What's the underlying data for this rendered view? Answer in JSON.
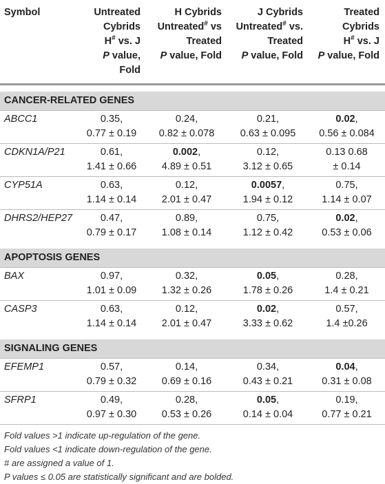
{
  "table": {
    "header": [
      [
        "Symbol"
      ],
      [
        "Untreated",
        "Cybrids",
        [
          {
            "text": "H"
          },
          {
            "text": "#",
            "style": "sup"
          },
          {
            "text": " vs. J"
          }
        ],
        [
          {
            "text": "P",
            "style": "italic"
          },
          {
            "text": " value, Fold"
          }
        ]
      ],
      [
        "H Cybrids",
        [
          {
            "text": "Untreated"
          },
          {
            "text": "#",
            "style": "sup"
          },
          {
            "text": " vs"
          }
        ],
        "Treated",
        [
          {
            "text": "P",
            "style": "italic"
          },
          {
            "text": " value, Fold"
          }
        ]
      ],
      [
        "J Cybrids",
        [
          {
            "text": "Untreated"
          },
          {
            "text": "#",
            "style": "sup"
          },
          {
            "text": " vs."
          }
        ],
        "Treated",
        [
          {
            "text": "P",
            "style": "italic"
          },
          {
            "text": " value, Fold"
          }
        ]
      ],
      [
        "Treated",
        "Cybrids",
        [
          {
            "text": "H"
          },
          {
            "text": "#",
            "style": "sup"
          },
          {
            "text": " vs. J"
          }
        ],
        [
          {
            "text": "P",
            "style": "italic"
          },
          {
            "text": " value, Fold"
          }
        ]
      ]
    ],
    "sections": [
      {
        "title": "CANCER-RELATED GENES",
        "rows": [
          {
            "symbol": "ABCC1",
            "cells": [
              {
                "p": "0.35",
                "sep": ",",
                "fold": "0.77 ± 0.19"
              },
              {
                "p": "0.24",
                "sep": ",",
                "fold": "0.82 ± 0.078"
              },
              {
                "p": "0.21",
                "sep": ",",
                "fold": "0.63 ± 0.095"
              },
              {
                "p": "0.02",
                "sep": ",",
                "fold": "0.56 ± 0.084",
                "bold": true
              }
            ]
          },
          {
            "symbol": "CDKN1A/P21",
            "cells": [
              {
                "p": "0.61",
                "sep": ",",
                "fold": "1.41 ± 0.66"
              },
              {
                "p": "0.002",
                "sep": ",",
                "fold": "4.89 ± 0.51",
                "bold": true
              },
              {
                "p": "0.12",
                "sep": ",",
                "fold": "3.12 ± 0.65"
              },
              {
                "p": "0.13 0.68",
                "fold": "± 0.14"
              }
            ]
          },
          {
            "symbol": "CYP51A",
            "cells": [
              {
                "p": "0.63",
                "sep": ",",
                "fold": "1.14 ± 0.14"
              },
              {
                "p": "0.12",
                "sep": ",",
                "fold": "2.01 ± 0.47"
              },
              {
                "p": "0.0057",
                "sep": ",",
                "fold": "1.94 ± 0.12",
                "bold": true
              },
              {
                "p": "0.75",
                "sep": ",",
                "fold": "1.14 ± 0.07"
              }
            ]
          },
          {
            "symbol": "DHRS2/HEP27",
            "cells": [
              {
                "p": "0.47",
                "sep": ",",
                "fold": "0.79 ± 0.17"
              },
              {
                "p": "0.89",
                "sep": ",",
                "fold": "1.08 ± 0.14"
              },
              {
                "p": "0.75",
                "sep": ",",
                "fold": "1.12 ± 0.42"
              },
              {
                "p": "0.02",
                "sep": ",",
                "fold": "0.53 ± 0.06",
                "bold": true
              }
            ]
          }
        ]
      },
      {
        "title": "APOPTOSIS GENES",
        "rows": [
          {
            "symbol": "BAX",
            "cells": [
              {
                "p": "0.97",
                "sep": ",",
                "fold": "1.01 ± 0.09"
              },
              {
                "p": "0.32",
                "sep": ",",
                "fold": "1.32 ± 0.26"
              },
              {
                "p": "0.05",
                "sep": ",",
                "fold": "1.78 ± 0.26",
                "bold": true
              },
              {
                "p": "0.28",
                "sep": ",",
                "fold": "1.4 ± 0.21"
              }
            ]
          },
          {
            "symbol": "CASP3",
            "cells": [
              {
                "p": "0.63",
                "sep": ",",
                "fold": "1.14 ± 0.14"
              },
              {
                "p": "0.12",
                "sep": ",",
                "fold": "2.01 ± 0.47"
              },
              {
                "p": "0.02",
                "sep": ",",
                "fold": "3.33 ± 0.62",
                "bold": true
              },
              {
                "p": "0.57",
                "sep": ",",
                "fold": "1.4 ±0.26"
              }
            ]
          }
        ]
      },
      {
        "title": "SIGNALING GENES",
        "rows": [
          {
            "symbol": "EFEMP1",
            "cells": [
              {
                "p": "0.57",
                "sep": ",",
                "fold": "0.79 ± 0.32"
              },
              {
                "p": "0.14",
                "sep": ",",
                "fold": "0.69 ± 0.16"
              },
              {
                "p": "0.34",
                "sep": ",",
                "fold": "0.43 ± 0.21"
              },
              {
                "p": "0.04",
                "sep": ",",
                "fold": "0.31 ± 0.08",
                "bold": true
              }
            ]
          },
          {
            "symbol": "SFRP1",
            "cells": [
              {
                "p": "0.49",
                "sep": ",",
                "fold": "0.97 ± 0.30"
              },
              {
                "p": "0.28",
                "sep": ",",
                "fold": "0.53 ± 0.26"
              },
              {
                "p": "0.05",
                "sep": ",",
                "fold": "0.14 ± 0.04",
                "bold": true
              },
              {
                "p": "0.19",
                "sep": ",",
                "fold": "0.77 ± 0.21"
              }
            ]
          }
        ]
      }
    ],
    "footnotes": [
      "Fold values >1 indicate up-regulation of the gene.",
      "Fold values <1 indicate down-regulation of the gene.",
      "# are assigned a value of 1.",
      "P values ≤ 0.05 are statistically significant and are bolded."
    ]
  }
}
